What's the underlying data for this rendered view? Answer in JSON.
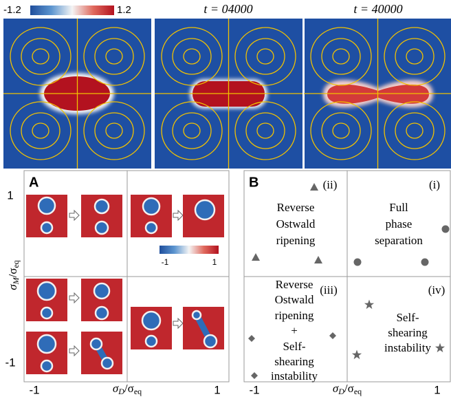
{
  "colorbar": {
    "min": "-1.2",
    "max": "1.2"
  },
  "time_labels": [
    "t = 04000",
    "t = 40000"
  ],
  "axes": {
    "y_ticks": [
      "1",
      "-1"
    ],
    "y_title": [
      "σ",
      "M",
      "/σ",
      "eq"
    ],
    "x_ticks": [
      "-1",
      "1"
    ],
    "x_title": [
      "σ",
      "D",
      "/σ",
      "eq"
    ]
  },
  "panel_a": {
    "label": "A",
    "colorbar": {
      "min": "-1",
      "max": "1"
    }
  },
  "panel_b": {
    "label": "B",
    "regions": [
      {
        "id": "(ii)",
        "lines": [
          "Reverse",
          "Ostwald",
          "ripening"
        ]
      },
      {
        "id": "(i)",
        "lines": [
          "Full",
          "phase",
          "separation"
        ]
      },
      {
        "id": "(iii)",
        "lines": [
          "Reverse",
          "Ostwald",
          "ripening",
          "+",
          "Self-",
          "shearing",
          "instability"
        ]
      },
      {
        "id": "(iv)",
        "lines": [
          "Self-",
          "shearing",
          "instability"
        ]
      }
    ]
  }
}
